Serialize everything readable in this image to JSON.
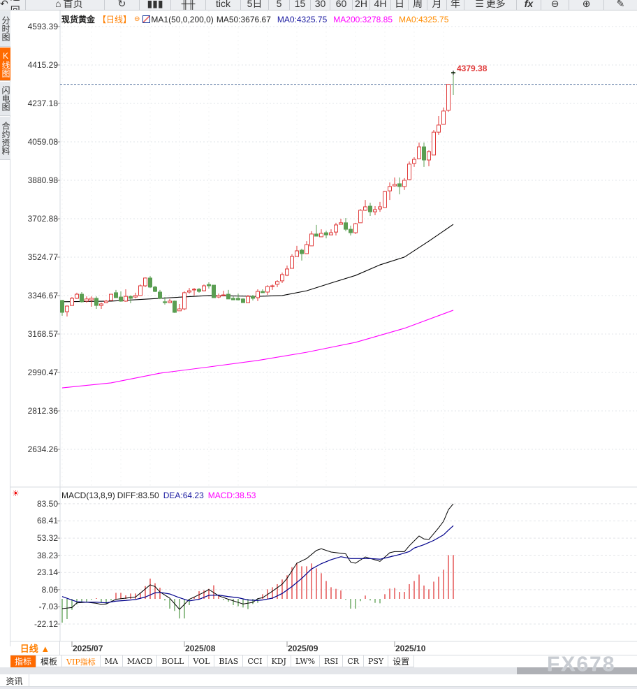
{
  "toolbar": {
    "back": "返回",
    "home": "首页",
    "tick": "tick",
    "five_day": "5日",
    "periods": [
      "5",
      "15",
      "30",
      "60",
      "2H",
      "4H",
      "日",
      "周",
      "月",
      "年"
    ],
    "more": "更多",
    "fx": "fx"
  },
  "sidebar": {
    "tabs": [
      "分时图",
      "K线图",
      "闪电图",
      "合约资料"
    ],
    "active": 1
  },
  "legend": {
    "symbol": "现货黄金",
    "period": "【日线】",
    "ma_name": "MA1(50,0,200,0)",
    "ma50": "MA50:3676.67",
    "ma0": "MA0:4325.75",
    "ma200": "MA200:3278.85",
    "ma0b": "MA0:4325.75"
  },
  "macd_legend": {
    "name": "MACD(13,8,9)",
    "diff": "DIFF:83.50",
    "dea": "DEA:64.23",
    "macd": "MACD:38.53"
  },
  "last_price_label": "4379.38",
  "period_selector": "日线 ▲",
  "indicator_tabs": [
    "指标",
    "模板",
    "VIP指标",
    "MA",
    "MACD",
    "BOLL",
    "VOL",
    "BIAS",
    "CCI",
    "KDJ",
    "LW%",
    "RSI",
    "CR",
    "PSY",
    "设置"
  ],
  "news_tab": "资讯",
  "watermark": "FX678",
  "colors": {
    "up": "#e03a3a",
    "down": "#5a9e52",
    "ma50": "#000000",
    "ma200": "#ff00ff",
    "diff": "#000000",
    "dea": "#00008b",
    "accent": "#ff6a00"
  },
  "chart_data": [
    {
      "type": "candlestick",
      "title": "现货黄金 日线",
      "y_ticks": [
        "4593.39",
        "4415.29",
        "4237.18",
        "4059.08",
        "3880.98",
        "3702.88",
        "3524.77",
        "3346.67",
        "3168.57",
        "2990.47",
        "2812.36",
        "2634.26"
      ],
      "ylim": [
        2634.26,
        4593.39
      ],
      "x_ticks": [
        {
          "label": "2025/07",
          "index": 2
        },
        {
          "label": "2025/08",
          "index": 25
        },
        {
          "label": "2025/09",
          "index": 46
        },
        {
          "label": "2025/10",
          "index": 68
        }
      ],
      "reference_line": 4325.75,
      "last_price": 4379.38,
      "ohlc": [
        [
          3324,
          3327,
          3253,
          3269
        ],
        [
          3272,
          3301,
          3250,
          3298
        ],
        [
          3301,
          3340,
          3301,
          3334
        ],
        [
          3334,
          3360,
          3331,
          3353
        ],
        [
          3353,
          3363,
          3314,
          3318
        ],
        [
          3321,
          3343,
          3314,
          3331
        ],
        [
          3327,
          3343,
          3295,
          3334
        ],
        [
          3334,
          3343,
          3285,
          3301
        ],
        [
          3301,
          3314,
          3285,
          3308
        ],
        [
          3314,
          3327,
          3311,
          3321
        ],
        [
          3324,
          3353,
          3324,
          3353
        ],
        [
          3360,
          3373,
          3337,
          3337
        ],
        [
          3340,
          3366,
          3318,
          3321
        ],
        [
          3321,
          3376,
          3318,
          3343
        ],
        [
          3343,
          3347,
          3311,
          3334
        ],
        [
          3340,
          3360,
          3334,
          3347
        ],
        [
          3347,
          3398,
          3347,
          3392
        ],
        [
          3392,
          3431,
          3386,
          3428
        ],
        [
          3428,
          3437,
          3382,
          3386
        ],
        [
          3386,
          3392,
          3363,
          3366
        ],
        [
          3363,
          3373,
          3330,
          3334
        ],
        [
          3318,
          3340,
          3305,
          3314
        ],
        [
          3314,
          3331,
          3311,
          3321
        ],
        [
          3321,
          3324,
          3266,
          3269
        ],
        [
          3276,
          3308,
          3276,
          3285
        ],
        [
          3285,
          3366,
          3279,
          3360
        ],
        [
          3363,
          3382,
          3356,
          3369
        ],
        [
          3373,
          3382,
          3347,
          3376
        ],
        [
          3376,
          3382,
          3360,
          3366
        ],
        [
          3369,
          3398,
          3366,
          3392
        ],
        [
          3398,
          3408,
          3379,
          3392
        ],
        [
          3395,
          3395,
          3337,
          3337
        ],
        [
          3340,
          3356,
          3334,
          3347
        ],
        [
          3347,
          3369,
          3343,
          3350
        ],
        [
          3353,
          3373,
          3331,
          3331
        ],
        [
          3334,
          3343,
          3327,
          3327
        ],
        [
          3334,
          3356,
          3324,
          3327
        ],
        [
          3331,
          3334,
          3314,
          3314
        ],
        [
          3314,
          3350,
          3314,
          3343
        ],
        [
          3343,
          3350,
          3324,
          3334
        ],
        [
          3337,
          3376,
          3321,
          3366
        ],
        [
          3366,
          3376,
          3360,
          3360
        ],
        [
          3363,
          3395,
          3350,
          3389
        ],
        [
          3389,
          3398,
          3373,
          3392
        ],
        [
          3399,
          3418,
          3386,
          3412
        ],
        [
          3415,
          3453,
          3405,
          3444
        ],
        [
          3441,
          3486,
          3437,
          3470
        ],
        [
          3473,
          3538,
          3473,
          3528
        ],
        [
          3528,
          3577,
          3528,
          3554
        ],
        [
          3557,
          3564,
          3509,
          3541
        ],
        [
          3541,
          3599,
          3541,
          3583
        ],
        [
          3577,
          3645,
          3577,
          3632
        ],
        [
          3632,
          3674,
          3622,
          3622
        ],
        [
          3619,
          3654,
          3619,
          3635
        ],
        [
          3638,
          3648,
          3612,
          3628
        ],
        [
          3628,
          3654,
          3628,
          3638
        ],
        [
          3641,
          3684,
          3625,
          3674
        ],
        [
          3677,
          3703,
          3677,
          3684
        ],
        [
          3684,
          3706,
          3645,
          3654
        ],
        [
          3654,
          3671,
          3625,
          3638
        ],
        [
          3638,
          3684,
          3632,
          3680
        ],
        [
          3684,
          3748,
          3684,
          3742
        ],
        [
          3742,
          3790,
          3739,
          3758
        ],
        [
          3761,
          3777,
          3716,
          3735
        ],
        [
          3735,
          3761,
          3719,
          3745
        ],
        [
          3748,
          3781,
          3735,
          3758
        ],
        [
          3755,
          3832,
          3755,
          3829
        ],
        [
          3832,
          3871,
          3790,
          3852
        ],
        [
          3855,
          3894,
          3852,
          3862
        ],
        [
          3865,
          3894,
          3816,
          3852
        ],
        [
          3852,
          3891,
          3836,
          3881
        ],
        [
          3884,
          3968,
          3881,
          3956
        ],
        [
          3959,
          3988,
          3943,
          3978
        ],
        [
          3981,
          4056,
          3981,
          4036
        ],
        [
          4036,
          4056,
          3943,
          3975
        ],
        [
          3975,
          4020,
          3946,
          4014
        ],
        [
          3998,
          4114,
          3998,
          4104
        ],
        [
          4104,
          4179,
          4092,
          4137
        ],
        [
          4140,
          4218,
          4140,
          4202
        ],
        [
          4205,
          4328,
          4198,
          4325.75
        ],
        [
          4381,
          4382,
          4276,
          4379.38
        ]
      ],
      "series": [
        {
          "name": "MA50",
          "points": [
            [
              0,
              3318
            ],
            [
              10,
              3321
            ],
            [
              20,
              3334
            ],
            [
              30,
              3347
            ],
            [
              40,
              3343
            ],
            [
              45,
              3347
            ],
            [
              50,
              3369
            ],
            [
              55,
              3405
            ],
            [
              60,
              3440
            ],
            [
              65,
              3489
            ],
            [
              70,
              3525
            ],
            [
              75,
              3599
            ],
            [
              80,
              3676.67
            ]
          ]
        },
        {
          "name": "MA200",
          "points": [
            [
              0,
              2919
            ],
            [
              10,
              2942
            ],
            [
              20,
              2987
            ],
            [
              30,
              3016
            ],
            [
              40,
              3046
            ],
            [
              50,
              3084
            ],
            [
              60,
              3130
            ],
            [
              70,
              3195
            ],
            [
              80,
              3278.85
            ]
          ]
        }
      ]
    },
    {
      "type": "macd",
      "y_ticks": [
        "83.50",
        "68.41",
        "53.32",
        "38.23",
        "23.14",
        "8.06",
        "-7.03",
        "-22.12"
      ],
      "ylim": [
        -22.12,
        83.5
      ],
      "histogram": [
        -20.9,
        -17.8,
        -9.6,
        -4.9,
        -3.1,
        -2.5,
        -0.8,
        0.6,
        -2.9,
        -4.5,
        -1.4,
        5.3,
        5.3,
        3.1,
        4.7,
        4.7,
        4.7,
        11.2,
        17.8,
        13.7,
        9.8,
        -1.4,
        -8.6,
        -10.6,
        -17.2,
        -17.2,
        -5.5,
        1.6,
        6.7,
        7.4,
        8.8,
        11.9,
        2.7,
        -1.0,
        -2.5,
        -5.5,
        -6.5,
        -7.6,
        -9.0,
        -4.5,
        -3.5,
        4.1,
        8.4,
        10.2,
        12.9,
        17.0,
        20.7,
        27.8,
        31.7,
        28.6,
        28.6,
        31.1,
        26.8,
        22.5,
        15.7,
        10.2,
        8.8,
        7.4,
        -0.8,
        -8.6,
        -8.6,
        -2.0,
        2.9,
        -1.4,
        -3.5,
        -3.9,
        4.1,
        9.0,
        9.6,
        6.1,
        6.1,
        12.9,
        15.7,
        21.3,
        11.7,
        8.4,
        15.1,
        19.4,
        25.6,
        38.4,
        38.53
      ],
      "series": [
        {
          "name": "DIFF",
          "points": [
            [
              0,
              -8.6
            ],
            [
              2,
              -7.6
            ],
            [
              3,
              -3.5
            ],
            [
              5,
              -2.9
            ],
            [
              7,
              -3.9
            ],
            [
              8,
              -4.9
            ],
            [
              9,
              -4.5
            ],
            [
              11,
              -0.4
            ],
            [
              13,
              0.6
            ],
            [
              15,
              1.6
            ],
            [
              16,
              5.1
            ],
            [
              18,
              12.3
            ],
            [
              19,
              10.8
            ],
            [
              20,
              6.1
            ],
            [
              22,
              0.6
            ],
            [
              24,
              -9.2
            ],
            [
              26,
              -0.4
            ],
            [
              27,
              1.6
            ],
            [
              29,
              5.7
            ],
            [
              30,
              8.2
            ],
            [
              32,
              2.7
            ],
            [
              34,
              -0.4
            ],
            [
              36,
              -3.1
            ],
            [
              37,
              -4.5
            ],
            [
              39,
              -3.1
            ],
            [
              40,
              0.2
            ],
            [
              41,
              1.0
            ],
            [
              43,
              6.7
            ],
            [
              45,
              12.9
            ],
            [
              46,
              18.0
            ],
            [
              48,
              31.3
            ],
            [
              50,
              35.4
            ],
            [
              52,
              42.5
            ],
            [
              53,
              44.0
            ],
            [
              55,
              41.1
            ],
            [
              58,
              39.5
            ],
            [
              59,
              32.3
            ],
            [
              60,
              31.3
            ],
            [
              62,
              36.8
            ],
            [
              65,
              32.9
            ],
            [
              67,
              40.5
            ],
            [
              68,
              41.5
            ],
            [
              70,
              41.5
            ],
            [
              71,
              46.6
            ],
            [
              73,
              55.2
            ],
            [
              74,
              52.6
            ],
            [
              75,
              52.1
            ],
            [
              77,
              62.4
            ],
            [
              78,
              68.1
            ],
            [
              79,
              78.3
            ],
            [
              80,
              83.5
            ]
          ]
        },
        {
          "name": "DEA",
          "points": [
            [
              0,
              2.0
            ],
            [
              2,
              -1.0
            ],
            [
              3,
              -2.5
            ],
            [
              5,
              -2.9
            ],
            [
              7,
              -2.9
            ],
            [
              9,
              -3.5
            ],
            [
              11,
              -2.0
            ],
            [
              13,
              -1.4
            ],
            [
              15,
              -0.6
            ],
            [
              17,
              1.6
            ],
            [
              19,
              5.3
            ],
            [
              20,
              5.7
            ],
            [
              22,
              4.3
            ],
            [
              24,
              1.0
            ],
            [
              26,
              -1.8
            ],
            [
              28,
              -0.4
            ],
            [
              30,
              3.1
            ],
            [
              32,
              3.3
            ],
            [
              34,
              2.0
            ],
            [
              36,
              1.0
            ],
            [
              38,
              -1.0
            ],
            [
              40,
              -1.4
            ],
            [
              41,
              -1.0
            ],
            [
              43,
              0.6
            ],
            [
              45,
              4.7
            ],
            [
              47,
              10.8
            ],
            [
              49,
              18.0
            ],
            [
              51,
              26.2
            ],
            [
              53,
              30.9
            ],
            [
              55,
              34.4
            ],
            [
              57,
              37.0
            ],
            [
              59,
              35.4
            ],
            [
              61,
              35.4
            ],
            [
              63,
              35.4
            ],
            [
              65,
              34.8
            ],
            [
              67,
              36.8
            ],
            [
              69,
              38.9
            ],
            [
              71,
              41.5
            ],
            [
              72,
              44.6
            ],
            [
              74,
              47.6
            ],
            [
              76,
              51.3
            ],
            [
              78,
              56.2
            ],
            [
              79,
              60.3
            ],
            [
              80,
              64.23
            ]
          ]
        }
      ]
    }
  ]
}
